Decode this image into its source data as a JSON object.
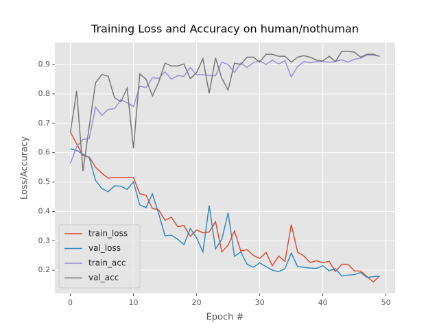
{
  "chart_data": {
    "type": "line",
    "title": "Training Loss and Accuracy on human/nothuman",
    "x_label": "Epoch #",
    "y_label": "Loss/Accuracy",
    "x": [
      0,
      1,
      2,
      3,
      4,
      5,
      6,
      7,
      8,
      9,
      10,
      11,
      12,
      13,
      14,
      15,
      16,
      17,
      18,
      19,
      20,
      21,
      22,
      23,
      24,
      25,
      26,
      27,
      28,
      29,
      30,
      31,
      32,
      33,
      34,
      35,
      36,
      37,
      38,
      39,
      40,
      41,
      42,
      43,
      44,
      45,
      46,
      47,
      48,
      49
    ],
    "series": [
      {
        "name": "train_loss",
        "color": "#E24A33",
        "values": [
          0.67,
          0.63,
          0.59,
          0.585,
          0.55,
          0.53,
          0.513,
          0.516,
          0.515,
          0.516,
          0.515,
          0.46,
          0.455,
          0.41,
          0.405,
          0.37,
          0.38,
          0.348,
          0.352,
          0.315,
          0.337,
          0.327,
          0.33,
          0.365,
          0.262,
          0.285,
          0.333,
          0.265,
          0.27,
          0.25,
          0.24,
          0.26,
          0.215,
          0.248,
          0.23,
          0.355,
          0.262,
          0.248,
          0.226,
          0.232,
          0.225,
          0.23,
          0.195,
          0.22,
          0.22,
          0.197,
          0.197,
          0.178,
          0.16,
          0.18
        ]
      },
      {
        "name": "val_loss",
        "color": "#348ABD",
        "values": [
          0.613,
          0.607,
          0.595,
          0.583,
          0.505,
          0.478,
          0.467,
          0.487,
          0.486,
          0.475,
          0.5,
          0.422,
          0.413,
          0.46,
          0.392,
          0.317,
          0.319,
          0.305,
          0.287,
          0.342,
          0.31,
          0.262,
          0.42,
          0.272,
          0.305,
          0.395,
          0.247,
          0.262,
          0.22,
          0.21,
          0.225,
          0.212,
          0.2,
          0.195,
          0.205,
          0.258,
          0.212,
          0.21,
          0.207,
          0.206,
          0.215,
          0.198,
          0.205,
          0.18,
          0.183,
          0.185,
          0.192,
          0.175,
          0.178,
          0.18
        ]
      },
      {
        "name": "train_acc",
        "color": "#988ED5",
        "values": [
          0.563,
          0.62,
          0.645,
          0.648,
          0.755,
          0.727,
          0.747,
          0.75,
          0.78,
          0.77,
          0.757,
          0.826,
          0.822,
          0.855,
          0.853,
          0.875,
          0.85,
          0.862,
          0.86,
          0.89,
          0.865,
          0.865,
          0.863,
          0.862,
          0.908,
          0.9,
          0.873,
          0.905,
          0.89,
          0.906,
          0.913,
          0.9,
          0.915,
          0.902,
          0.913,
          0.858,
          0.893,
          0.91,
          0.906,
          0.91,
          0.91,
          0.908,
          0.91,
          0.916,
          0.908,
          0.918,
          0.922,
          0.932,
          0.932,
          0.928
        ]
      },
      {
        "name": "val_acc",
        "color": "#777777",
        "values": [
          0.668,
          0.81,
          0.537,
          0.69,
          0.838,
          0.866,
          0.86,
          0.787,
          0.773,
          0.82,
          0.615,
          0.868,
          0.85,
          0.793,
          0.84,
          0.905,
          0.895,
          0.895,
          0.902,
          0.852,
          0.872,
          0.92,
          0.802,
          0.923,
          0.853,
          0.813,
          0.905,
          0.9,
          0.925,
          0.925,
          0.908,
          0.935,
          0.935,
          0.928,
          0.928,
          0.908,
          0.925,
          0.93,
          0.925,
          0.915,
          0.912,
          0.928,
          0.91,
          0.945,
          0.945,
          0.942,
          0.925,
          0.935,
          0.935,
          0.928
        ]
      }
    ],
    "xlim": [
      -2.45,
      51.45
    ],
    "xticks": [
      0,
      10,
      20,
      30,
      40,
      50
    ],
    "ylim": [
      0.121,
      0.975
    ],
    "yticks": [
      0.2,
      0.3,
      0.4,
      0.5,
      0.6,
      0.7,
      0.8,
      0.9
    ],
    "grid": true,
    "legend": "lower left"
  }
}
